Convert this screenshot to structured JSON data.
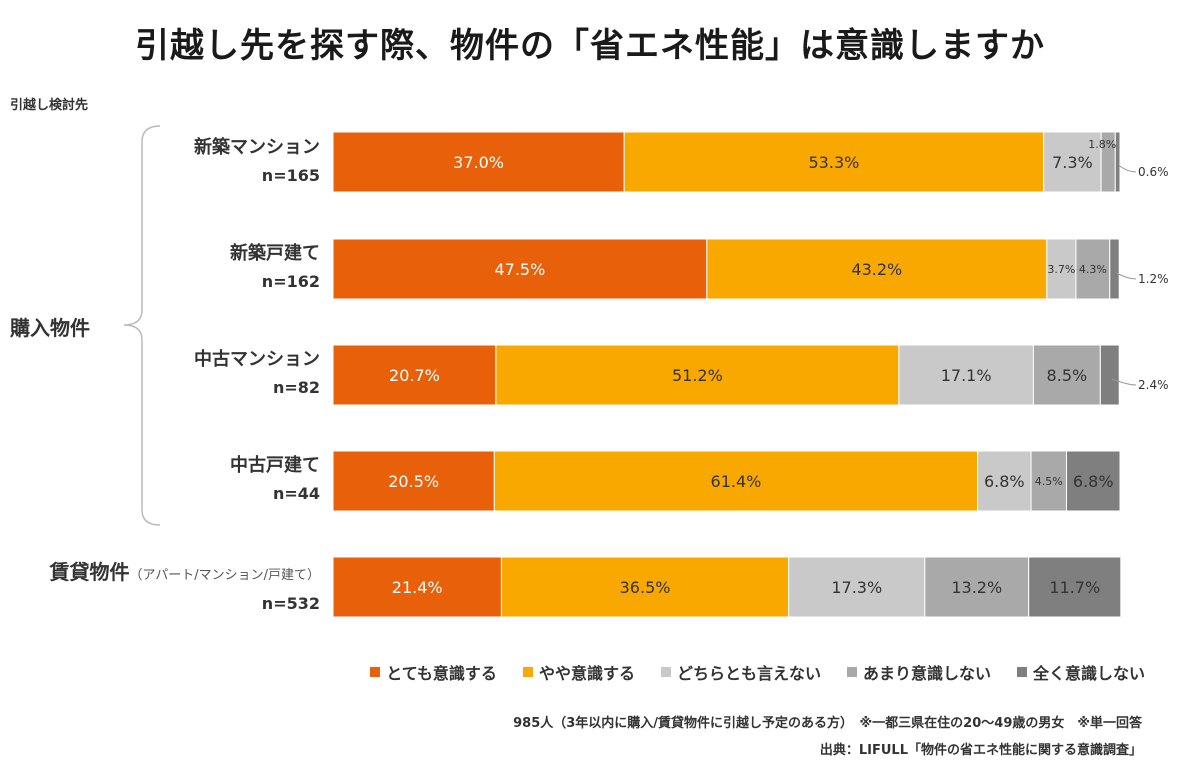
{
  "chart_data": {
    "type": "bar",
    "orientation": "horizontal",
    "stacked": true,
    "title": "引越し先を探す際、物件の「省エネ性能」は意識しますか",
    "axis_caption": "引越し検討先",
    "group_label": "購入物件",
    "categories": [
      {
        "name": "新築マンション",
        "n": "n=165"
      },
      {
        "name": "新築戸建て",
        "n": "n=162"
      },
      {
        "name": "中古マンション",
        "n": "n=82"
      },
      {
        "name": "中古戸建て",
        "n": "n=44"
      },
      {
        "name": "賃貸物件",
        "sub": "（アパート/マンション/戸建て）",
        "n": "n=532"
      }
    ],
    "series": [
      {
        "name": "とても意識する",
        "color": "#e8600a",
        "values": [
          37.0,
          47.5,
          20.7,
          20.5,
          21.4
        ],
        "labels": [
          "37.0%",
          "47.5%",
          "20.7%",
          "20.5%",
          "21.4%"
        ]
      },
      {
        "name": "やや意識する",
        "color": "#f9a800",
        "values": [
          53.3,
          43.2,
          51.2,
          61.4,
          36.5
        ],
        "labels": [
          "53.3%",
          "43.2%",
          "51.2%",
          "61.4%",
          "36.5%"
        ]
      },
      {
        "name": "どちらとも言えない",
        "color": "#c9c9c9",
        "values": [
          7.3,
          3.7,
          17.1,
          6.8,
          17.3
        ],
        "labels": [
          "7.3%",
          "3.7%",
          "17.1%",
          "6.8%",
          "17.3%"
        ]
      },
      {
        "name": "あまり意識しない",
        "color": "#a9a9a9",
        "values": [
          1.8,
          4.3,
          8.5,
          4.5,
          13.2
        ],
        "labels": [
          "1.8%",
          "4.3%",
          "8.5%",
          "4.5%",
          "13.2%"
        ]
      },
      {
        "name": "全く意識しない",
        "color": "#7f7f7f",
        "values": [
          0.6,
          1.2,
          2.4,
          6.8,
          11.7
        ],
        "labels": [
          "0.6%",
          "1.2%",
          "2.4%",
          "6.8%",
          "11.7%"
        ]
      }
    ],
    "xlim": [
      0,
      100
    ],
    "legend_position": "bottom-right"
  },
  "notes": {
    "line1": "985人（3年以内に購入/賃貸物件に引越し予定のある方）　※一都三県在住の20〜49歳の男女　※単一回答",
    "line2": "出典：LIFULL「物件の省エネ性能に関する意識調査」"
  }
}
